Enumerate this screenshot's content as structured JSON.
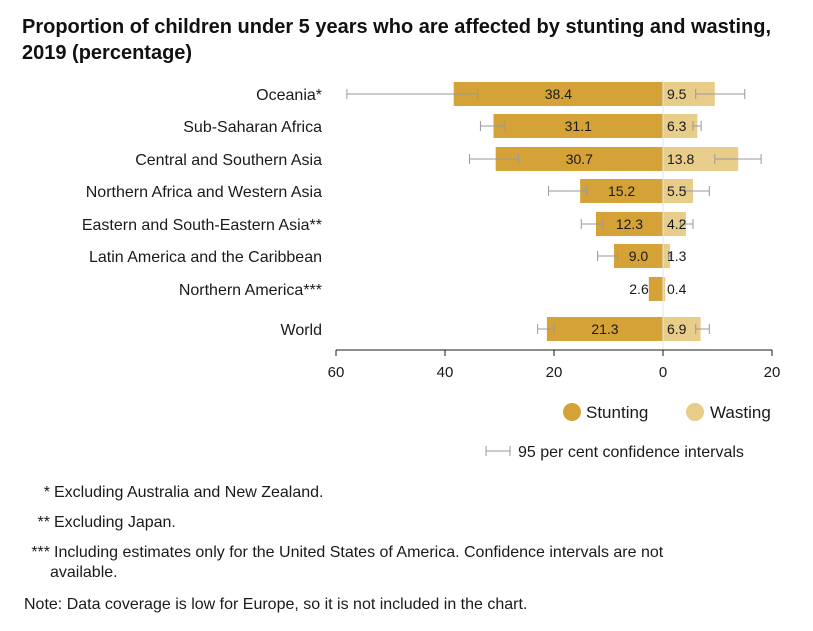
{
  "chart_data": {
    "type": "bar",
    "orientation": "horizontal-diverging",
    "title": "Proportion of children under 5 years who are affected by stunting and wasting, 2019 (percentage)",
    "categories": [
      "Oceania*",
      "Sub-Saharan Africa",
      "Central and Southern Asia",
      "Northern Africa and Western Asia",
      "Eastern and South-Eastern Asia**",
      "Latin America and the Caribbean",
      "Northern America***",
      "World"
    ],
    "series": [
      {
        "name": "Stunting",
        "color": "#D4A237",
        "direction": "left",
        "values": [
          38.4,
          31.1,
          30.7,
          15.2,
          12.3,
          9.0,
          2.6,
          21.3
        ],
        "labels": [
          "38.4",
          "31.1",
          "30.7",
          "15.2",
          "12.3",
          "9.0",
          "2.6",
          "21.3"
        ],
        "ci_low": [
          34.0,
          29.0,
          26.5,
          14.0,
          11.0,
          8.3,
          null,
          20.0
        ],
        "ci_high": [
          58.0,
          33.5,
          35.5,
          21.0,
          15.0,
          12.0,
          null,
          23.0
        ]
      },
      {
        "name": "Wasting",
        "color": "#E8CC8A",
        "direction": "right",
        "values": [
          9.5,
          6.3,
          13.8,
          5.5,
          4.2,
          1.3,
          0.4,
          6.9
        ],
        "labels": [
          "9.5",
          "6.3",
          "13.8",
          "5.5",
          "4.2",
          "1.3",
          "0.4",
          "6.9"
        ],
        "ci_low": [
          6.0,
          5.5,
          9.5,
          4.0,
          3.2,
          1.0,
          null,
          6.0
        ],
        "ci_high": [
          15.0,
          7.0,
          18.0,
          8.5,
          5.5,
          1.6,
          null,
          8.5
        ]
      }
    ],
    "x_ticks": [
      {
        "value": -60,
        "label": "60"
      },
      {
        "value": -40,
        "label": "40"
      },
      {
        "value": -20,
        "label": "20"
      },
      {
        "value": 0,
        "label": "0"
      },
      {
        "value": 20,
        "label": "20"
      }
    ],
    "xlim": [
      -60,
      20
    ],
    "legend": {
      "position": "bottom-right",
      "ci_label": "95 per cent confidence intervals"
    }
  },
  "footnotes": {
    "star1_mark": "*",
    "star1_text": "Excluding Australia and New Zealand.",
    "star2_mark": "**",
    "star2_text": "Excluding Japan.",
    "star3_mark": "***",
    "star3_text_line1": "Including estimates only for the United States of America. Confidence intervals are not",
    "star3_text_line2": "available.",
    "note": "Note: Data coverage is low for Europe, so it is not included in the chart."
  }
}
